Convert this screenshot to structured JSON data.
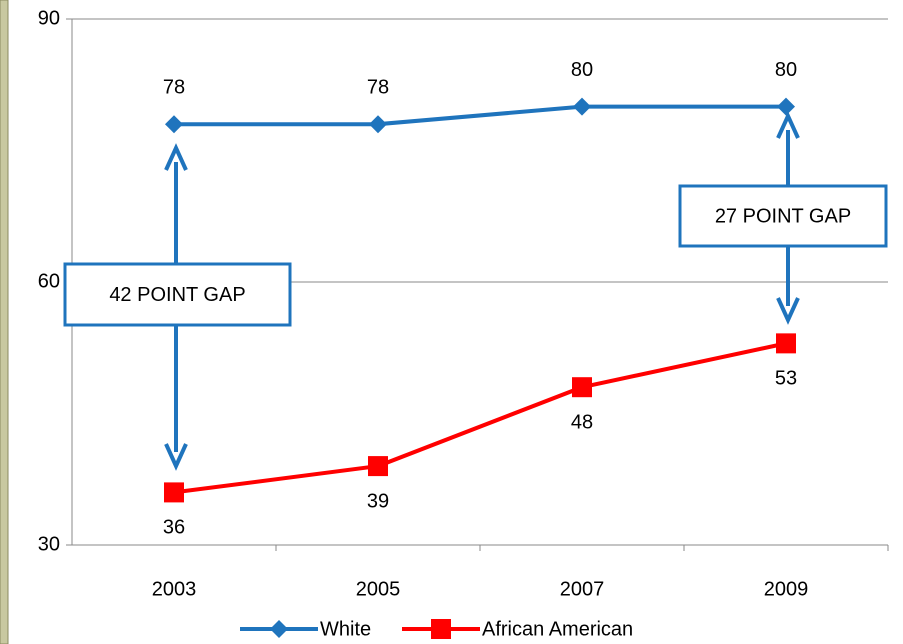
{
  "chart_data": {
    "type": "line",
    "categories": [
      "2003",
      "2005",
      "2007",
      "2009"
    ],
    "series": [
      {
        "name": "White",
        "color": "#1f74bd",
        "marker": "diamond",
        "values": [
          78,
          78,
          80,
          80
        ]
      },
      {
        "name": "African American",
        "color": "#ff0000",
        "marker": "square",
        "values": [
          36,
          39,
          48,
          53
        ]
      }
    ],
    "ylim": [
      30,
      90
    ],
    "yticks": [
      30,
      60,
      90
    ],
    "grid": true,
    "legend": "bottom",
    "annotations": [
      "42 POINT GAP",
      "27 POINT GAP"
    ]
  }
}
